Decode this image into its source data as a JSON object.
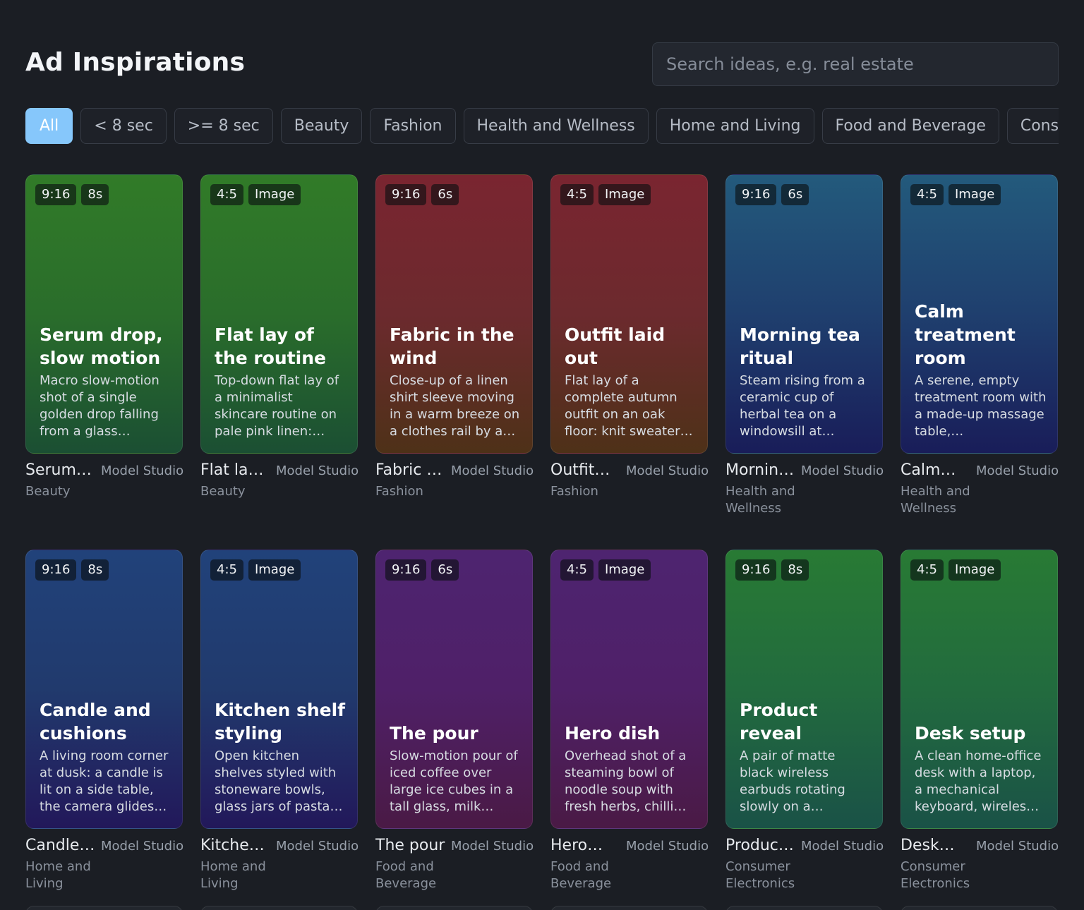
{
  "title": "Ad Inspirations",
  "search": {
    "placeholder": "Search ideas, e.g. real estate",
    "value": ""
  },
  "filters": [
    {
      "label": "All",
      "active": true
    },
    {
      "label": "< 8 sec"
    },
    {
      "label": ">= 8 sec"
    },
    {
      "label": "Beauty"
    },
    {
      "label": "Fashion"
    },
    {
      "label": "Health and Wellness"
    },
    {
      "label": "Home and Living"
    },
    {
      "label": "Food and Beverage"
    },
    {
      "label": "Consum"
    }
  ],
  "cards": [
    {
      "ratio": "9:16",
      "tag": "8s",
      "gradient": "green",
      "title": "Serum drop, slow motion",
      "desc": "Macro slow-motion shot of a single golden drop falling from a glass…",
      "name": "Serum…",
      "studio": "Model Studio",
      "category": "Beauty"
    },
    {
      "ratio": "4:5",
      "tag": "Image",
      "gradient": "green",
      "title": "Flat lay of the routine",
      "desc": "Top-down flat lay of a minimalist skincare routine on pale pink linen:…",
      "name": "Flat la…",
      "studio": "Model Studio",
      "category": "Beauty"
    },
    {
      "ratio": "9:16",
      "tag": "6s",
      "gradient": "red",
      "title": "Fabric in the wind",
      "desc": "Close-up of a linen shirt sleeve moving in a warm breeze on a clothes rail by a…",
      "name": "Fabric …",
      "studio": "Model Studio",
      "category": "Fashion"
    },
    {
      "ratio": "4:5",
      "tag": "Image",
      "gradient": "red",
      "title": "Outfit laid out",
      "desc": "Flat lay of a complete autumn outfit on an oak floor: knit sweater…",
      "name": "Outfit…",
      "studio": "Model Studio",
      "category": "Fashion"
    },
    {
      "ratio": "9:16",
      "tag": "6s",
      "gradient": "blue",
      "title": "Morning tea ritual",
      "desc": "Steam rising from a ceramic cup of herbal tea on a windowsill at…",
      "name": "Mornin…",
      "studio": "Model Studio",
      "category": "Health and Wellness"
    },
    {
      "ratio": "4:5",
      "tag": "Image",
      "gradient": "blue",
      "title": "Calm treatment room",
      "desc": "A serene, empty treatment room with a made-up massage table,…",
      "name": "Calm…",
      "studio": "Model Studio",
      "category": "Health and Wellness"
    },
    {
      "ratio": "9:16",
      "tag": "8s",
      "gradient": "navy",
      "title": "Candle and cushions",
      "desc": "A living room corner at dusk: a candle is lit on a side table, the camera glides…",
      "name": "Candle…",
      "studio": "Model Studio",
      "category": "Home and Living"
    },
    {
      "ratio": "4:5",
      "tag": "Image",
      "gradient": "navy",
      "title": "Kitchen shelf styling",
      "desc": "Open kitchen shelves styled with stoneware bowls, glass jars of pasta…",
      "name": "Kitche…",
      "studio": "Model Studio",
      "category": "Home and Living"
    },
    {
      "ratio": "9:16",
      "tag": "6s",
      "gradient": "purple",
      "title": "The pour",
      "desc": "Slow-motion pour of iced coffee over large ice cubes in a tall glass, milk…",
      "name": "The pour",
      "studio": "Model Studio",
      "category": "Food and Beverage"
    },
    {
      "ratio": "4:5",
      "tag": "Image",
      "gradient": "purple",
      "title": "Hero dish",
      "desc": "Overhead shot of a steaming bowl of noodle soup with fresh herbs, chilli…",
      "name": "Hero…",
      "studio": "Model Studio",
      "category": "Food and Beverage"
    },
    {
      "ratio": "9:16",
      "tag": "8s",
      "gradient": "green2",
      "title": "Product reveal",
      "desc": "A pair of matte black wireless earbuds rotating slowly on a…",
      "name": "Produc…",
      "studio": "Model Studio",
      "category": "Consumer Electronics"
    },
    {
      "ratio": "4:5",
      "tag": "Image",
      "gradient": "green2",
      "title": "Desk setup",
      "desc": "A clean home-office desk with a laptop, a mechanical keyboard, wireles…",
      "name": "Desk…",
      "studio": "Model Studio",
      "category": "Consumer Electronics"
    }
  ]
}
